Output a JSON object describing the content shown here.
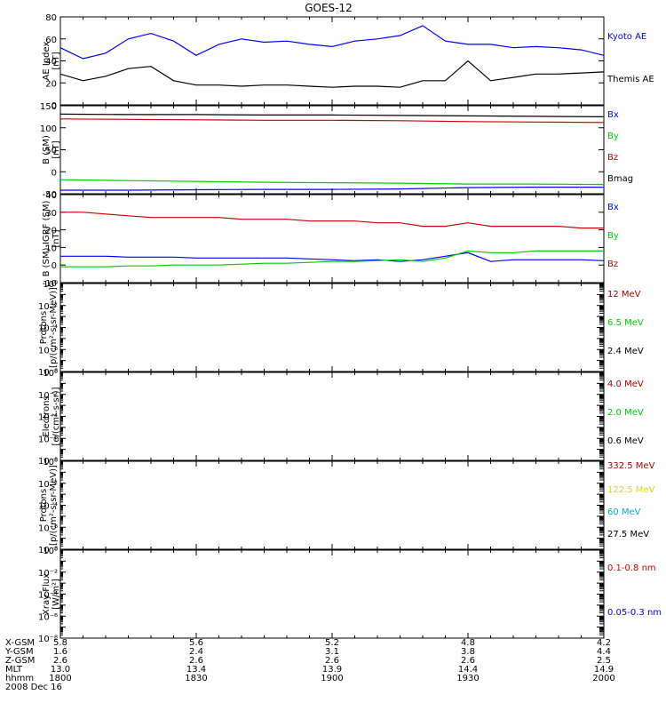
{
  "title": "GOES-12",
  "colors": {
    "blue": "#0000ff",
    "black": "#000000",
    "red": "#cc0000",
    "green": "#00cc00",
    "yellow": "#dddd00",
    "cyan": "#00aaee",
    "darkred": "#aa0000"
  },
  "x_ticks": [
    "1800",
    "1830",
    "1900",
    "1930",
    "2000"
  ],
  "chart_data": [
    {
      "type": "line",
      "ylabel": [
        "AE Index",
        "[nT]"
      ],
      "ylim": [
        0,
        80
      ],
      "yticks": [
        "0",
        "20",
        "40",
        "60",
        "80"
      ],
      "x": [
        1800,
        1805,
        1810,
        1815,
        1820,
        1825,
        1830,
        1835,
        1840,
        1845,
        1850,
        1855,
        1900,
        1905,
        1910,
        1915,
        1920,
        1925,
        1930,
        1935,
        1940,
        1945,
        1950,
        1955,
        2000
      ],
      "series": [
        {
          "name": "Kyoto AE",
          "color": "blue",
          "values": [
            52,
            42,
            47,
            60,
            65,
            58,
            45,
            55,
            60,
            57,
            58,
            55,
            53,
            58,
            60,
            63,
            72,
            58,
            55,
            55,
            52,
            53,
            52,
            50,
            45
          ]
        },
        {
          "name": "Themis AE",
          "color": "black",
          "values": [
            28,
            22,
            26,
            33,
            35,
            22,
            18,
            18,
            17,
            18,
            18,
            17,
            16,
            17,
            17,
            16,
            22,
            22,
            40,
            22,
            25,
            28,
            28,
            29,
            30
          ]
        }
      ]
    },
    {
      "type": "line",
      "ylabel": [
        "B (SM)",
        "[nT]"
      ],
      "ylim": [
        -50,
        150
      ],
      "yticks": [
        "-50",
        "0",
        "50",
        "100",
        "150"
      ],
      "x": [
        1800,
        1815,
        1830,
        1845,
        1900,
        1915,
        1930,
        1945,
        2000
      ],
      "series": [
        {
          "name": "Bx",
          "color": "blue",
          "values": [
            -42,
            -42,
            -41,
            -40,
            -40,
            -39,
            -36,
            -35,
            -35
          ]
        },
        {
          "name": "By",
          "color": "green",
          "values": [
            -18,
            -20,
            -22,
            -24,
            -25,
            -26,
            -28,
            -28,
            -29
          ]
        },
        {
          "name": "Bz",
          "color": "red",
          "values": [
            120,
            119,
            118,
            117,
            117,
            116,
            114,
            113,
            112
          ]
        },
        {
          "name": "Bmag",
          "color": "black",
          "values": [
            131,
            130,
            130,
            129,
            129,
            128,
            127,
            126,
            125
          ]
        }
      ]
    },
    {
      "type": "line",
      "ylabel": [
        "B (SM)-IGRF (SM)",
        "[nT]"
      ],
      "ylim": [
        -10,
        40
      ],
      "yticks": [
        "-10",
        "0",
        "10",
        "20",
        "30",
        "40"
      ],
      "x": [
        1800,
        1805,
        1810,
        1815,
        1820,
        1825,
        1830,
        1835,
        1840,
        1845,
        1850,
        1855,
        1900,
        1905,
        1910,
        1915,
        1920,
        1925,
        1930,
        1935,
        1940,
        1945,
        1950,
        1955,
        2000
      ],
      "series": [
        {
          "name": "Bx",
          "color": "blue",
          "values": [
            5,
            5,
            5,
            4.5,
            4.5,
            4.5,
            4,
            4,
            4,
            4,
            4,
            3.5,
            3,
            2.5,
            3,
            2,
            3,
            5,
            7,
            2,
            3,
            3,
            3,
            3,
            2.5
          ]
        },
        {
          "name": "By",
          "color": "green",
          "values": [
            -1,
            -1,
            -1,
            -0.5,
            -0.5,
            0,
            0,
            0,
            0.5,
            1,
            1,
            1.5,
            2,
            2,
            2.5,
            3,
            2,
            4,
            8,
            7,
            7,
            8,
            8,
            8,
            8
          ]
        },
        {
          "name": "Bz",
          "color": "red",
          "values": [
            30,
            30,
            29,
            28,
            27,
            27,
            27,
            27,
            26,
            26,
            26,
            25,
            25,
            25,
            24,
            24,
            22,
            22,
            24,
            22,
            22,
            22,
            22,
            21,
            21
          ]
        }
      ]
    },
    {
      "type": "line",
      "ylabel": [
        "Protons",
        "[p/(cm²-s-sr-MeV)]"
      ],
      "series": [
        {
          "name": "12 MeV",
          "color": "darkred",
          "values": []
        },
        {
          "name": "6.5 MeV",
          "color": "green",
          "values": []
        },
        {
          "name": "2.4 MeV",
          "color": "black",
          "values": []
        }
      ]
    },
    {
      "type": "line",
      "ylabel": [
        "Electrons",
        "[e/(cm²-s-sr)]"
      ],
      "series": [
        {
          "name": "4.0 MeV",
          "color": "darkred",
          "values": []
        },
        {
          "name": "2.0 MeV",
          "color": "green",
          "values": []
        },
        {
          "name": "0.6 MeV",
          "color": "black",
          "values": []
        }
      ]
    },
    {
      "type": "line",
      "ylabel": [
        "Protons",
        "[p/(cm²-s-sr-MeV)]"
      ],
      "series": [
        {
          "name": "332.5 MeV",
          "color": "darkred",
          "values": []
        },
        {
          "name": "122.5 MeV",
          "color": "yellow",
          "values": []
        },
        {
          "name": "60 MeV",
          "color": "cyan",
          "values": []
        },
        {
          "name": "27.5 MeV",
          "color": "black",
          "values": []
        }
      ]
    },
    {
      "type": "line",
      "ylabel": [
        "Xray Flux",
        "[W/m²]"
      ],
      "series": [
        {
          "name": "0.1-0.8 nm",
          "color": "red",
          "values": []
        },
        {
          "name": "0.05-0.3 nm",
          "color": "blue",
          "values": []
        }
      ]
    }
  ],
  "log_panel_yticks": [
    "10⁻⁸",
    "10⁻⁷",
    "10⁻⁶",
    "10⁻⁵",
    "10⁻⁴",
    "10⁻³",
    "10⁻²",
    "10⁻¹",
    "10⁰"
  ],
  "footer": {
    "rows": [
      {
        "label": "X-GSM",
        "values": [
          "5.8",
          "5.6",
          "5.2",
          "4.8",
          "4.2"
        ]
      },
      {
        "label": "Y-GSM",
        "values": [
          "1.6",
          "2.4",
          "3.1",
          "3.8",
          "4.4"
        ]
      },
      {
        "label": "Z-GSM",
        "values": [
          "2.6",
          "2.6",
          "2.6",
          "2.6",
          "2.5"
        ]
      },
      {
        "label": "MLT",
        "values": [
          "13.0",
          "13.4",
          "13.9",
          "14.4",
          "14.9"
        ]
      },
      {
        "label": "hhmm",
        "values": [
          "1800",
          "1830",
          "1900",
          "1930",
          "2000"
        ]
      }
    ],
    "date": "2008 Dec 16"
  }
}
